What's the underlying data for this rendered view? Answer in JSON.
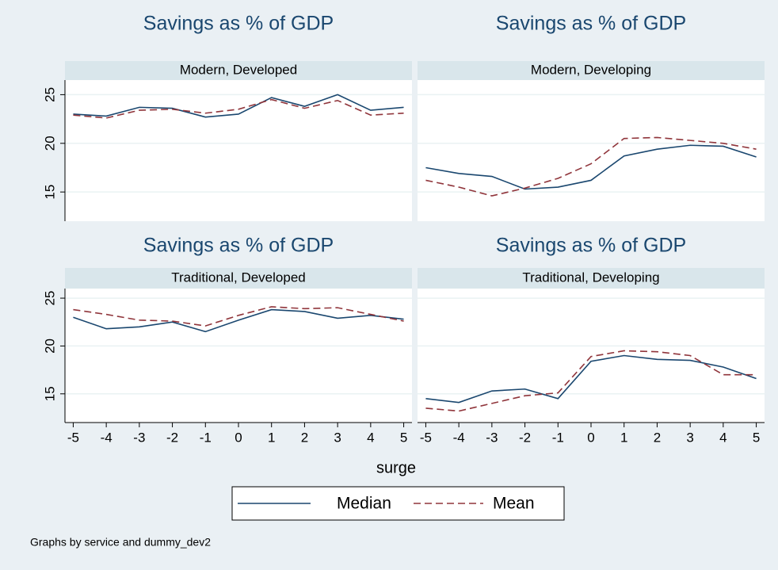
{
  "chart_data": [
    {
      "type": "line",
      "title": "Savings as % of GDP",
      "subtitle": "Modern, Developed",
      "x": [
        -5,
        -4,
        -3,
        -2,
        -1,
        0,
        1,
        2,
        3,
        4,
        5
      ],
      "series": [
        {
          "name": "Median",
          "color": "#1a476f",
          "values": [
            23.0,
            22.8,
            23.7,
            23.6,
            22.7,
            23.0,
            24.7,
            23.8,
            25.0,
            23.4,
            23.7
          ]
        },
        {
          "name": "Mean",
          "color": "#90353b",
          "values": [
            22.9,
            22.6,
            23.4,
            23.5,
            23.1,
            23.5,
            24.5,
            23.6,
            24.4,
            22.9,
            23.1
          ]
        }
      ],
      "xlim": [
        -5.25,
        5.25
      ],
      "ylim": [
        12,
        26.5
      ],
      "yticks": [
        15,
        20,
        25
      ],
      "grid": true
    },
    {
      "type": "line",
      "title": "Savings as % of GDP",
      "subtitle": "Modern, Developing",
      "x": [
        -5,
        -4,
        -3,
        -2,
        -1,
        0,
        1,
        2,
        3,
        4,
        5
      ],
      "series": [
        {
          "name": "Median",
          "color": "#1a476f",
          "values": [
            17.5,
            16.9,
            16.6,
            15.3,
            15.5,
            16.2,
            18.7,
            19.4,
            19.8,
            19.7,
            18.6
          ]
        },
        {
          "name": "Mean",
          "color": "#90353b",
          "values": [
            16.2,
            15.5,
            14.6,
            15.4,
            16.4,
            17.9,
            20.5,
            20.6,
            20.3,
            20.0,
            19.4
          ]
        }
      ],
      "xlim": [
        -5.25,
        5.25
      ],
      "ylim": [
        12,
        26.5
      ],
      "yticks": [
        15,
        20,
        25
      ],
      "grid": true
    },
    {
      "type": "line",
      "title": "Savings as % of GDP",
      "subtitle": "Traditional, Developed",
      "x": [
        -5,
        -4,
        -3,
        -2,
        -1,
        0,
        1,
        2,
        3,
        4,
        5
      ],
      "series": [
        {
          "name": "Median",
          "color": "#1a476f",
          "values": [
            23.0,
            21.8,
            22.0,
            22.5,
            21.5,
            22.7,
            23.8,
            23.6,
            22.9,
            23.2,
            22.8
          ]
        },
        {
          "name": "Mean",
          "color": "#90353b",
          "values": [
            23.8,
            23.3,
            22.7,
            22.6,
            22.1,
            23.2,
            24.1,
            23.9,
            24.0,
            23.3,
            22.6
          ]
        }
      ],
      "xlim": [
        -5.25,
        5.25
      ],
      "xticks": [
        -5,
        -4,
        -3,
        -2,
        -1,
        0,
        1,
        2,
        3,
        4,
        5
      ],
      "ylim": [
        12,
        26
      ],
      "yticks": [
        15,
        20,
        25
      ],
      "grid": true
    },
    {
      "type": "line",
      "title": "Savings as % of GDP",
      "subtitle": "Traditional, Developing",
      "x": [
        -5,
        -4,
        -3,
        -2,
        -1,
        0,
        1,
        2,
        3,
        4,
        5
      ],
      "series": [
        {
          "name": "Median",
          "color": "#1a476f",
          "values": [
            14.5,
            14.1,
            15.3,
            15.5,
            14.5,
            18.4,
            19.0,
            18.6,
            18.5,
            17.8,
            16.6
          ]
        },
        {
          "name": "Mean",
          "color": "#90353b",
          "values": [
            13.5,
            13.2,
            14.0,
            14.8,
            15.1,
            18.9,
            19.5,
            19.4,
            19.0,
            17.0,
            17.0
          ]
        }
      ],
      "xlim": [
        -5.25,
        5.25
      ],
      "xticks": [
        -5,
        -4,
        -3,
        -2,
        -1,
        0,
        1,
        2,
        3,
        4,
        5
      ],
      "ylim": [
        12,
        26
      ],
      "yticks": [
        15,
        20,
        25
      ],
      "grid": true
    }
  ],
  "xlabel": "surge",
  "note": "Graphs by service and dummy_dev2"
}
